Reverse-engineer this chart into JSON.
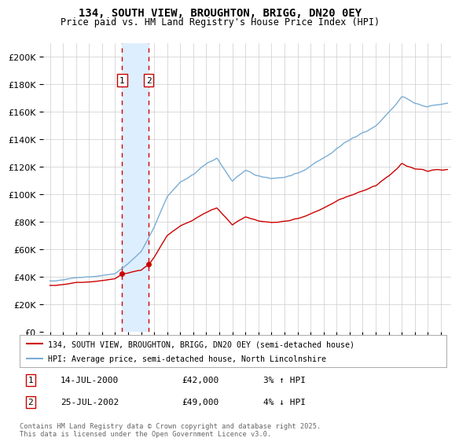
{
  "title": "134, SOUTH VIEW, BROUGHTON, BRIGG, DN20 0EY",
  "subtitle": "Price paid vs. HM Land Registry's House Price Index (HPI)",
  "legend_line1": "134, SOUTH VIEW, BROUGHTON, BRIGG, DN20 0EY (semi-detached house)",
  "legend_line2": "HPI: Average price, semi-detached house, North Lincolnshire",
  "annotation1_date": "14-JUL-2000",
  "annotation1_price": "£42,000",
  "annotation1_hpi": "3% ↑ HPI",
  "annotation2_date": "25-JUL-2002",
  "annotation2_price": "£49,000",
  "annotation2_hpi": "4% ↓ HPI",
  "vline1_year": 2000.54,
  "vline2_year": 2002.57,
  "footer": "Contains HM Land Registry data © Crown copyright and database right 2025.\nThis data is licensed under the Open Government Licence v3.0.",
  "red_color": "#cc0000",
  "blue_color": "#7aadd4",
  "shade_color": "#ddeeff",
  "background_color": "#ffffff",
  "grid_color": "#cccccc",
  "ylim": [
    0,
    210000
  ],
  "xlim_start": 1994.5,
  "xlim_end": 2025.8
}
